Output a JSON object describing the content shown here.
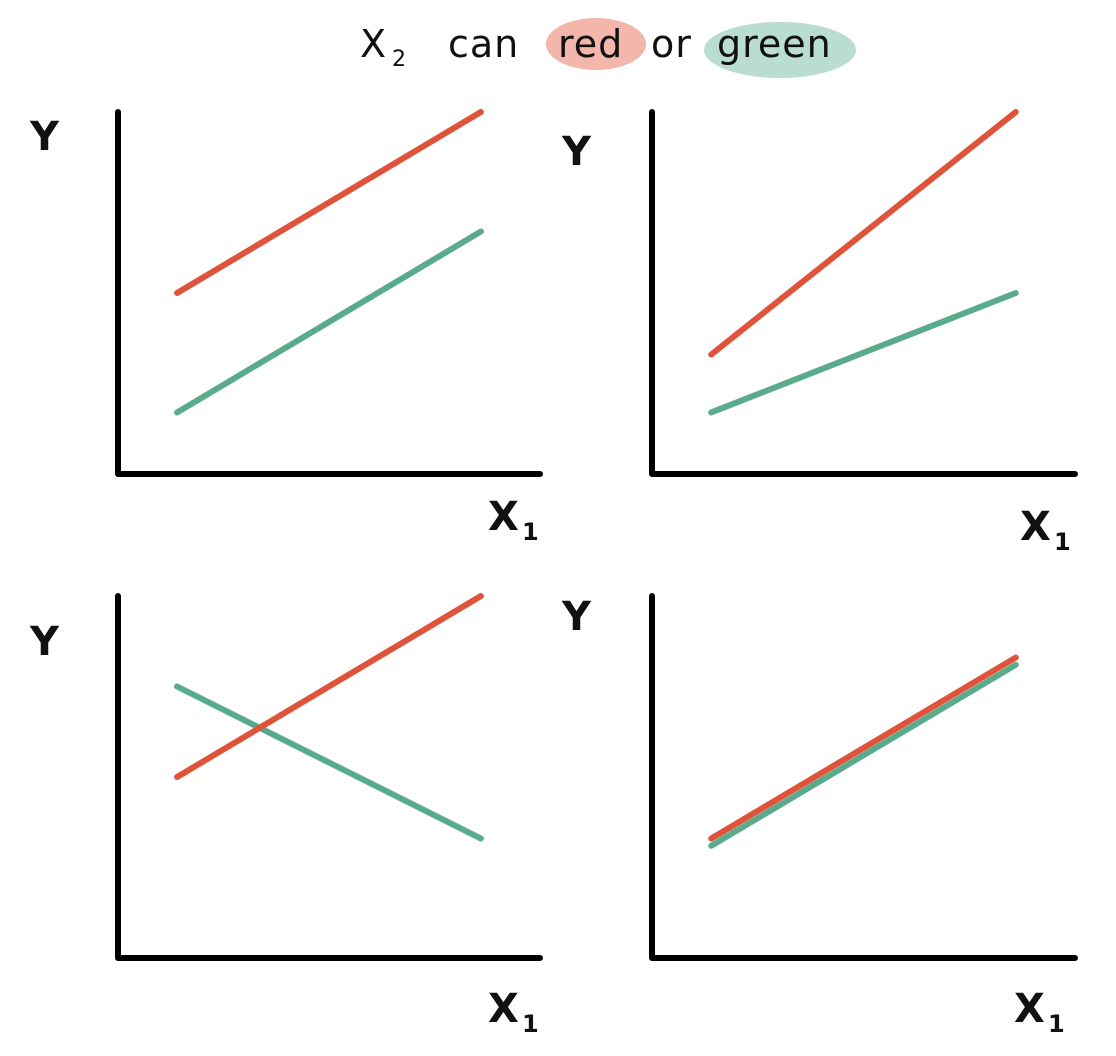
{
  "title": {
    "var_main": "X",
    "var_sub": "2",
    "text_can": "can",
    "red_word": "red",
    "or_word": "or",
    "green_word": "green"
  },
  "colors": {
    "red": "#e0533b",
    "green": "#5aab8c",
    "red_highlight": "#f2b6aa",
    "green_highlight": "#b9ddd1",
    "axis": "#000000"
  },
  "chart_data": [
    {
      "type": "line",
      "ylabel": "Y",
      "xlabel_main": "X",
      "xlabel_sub": "1",
      "ylim": [
        0,
        10
      ],
      "xlim": [
        0,
        10
      ],
      "series": [
        {
          "name": "red",
          "color": "red",
          "x": [
            1.4,
            8.6
          ],
          "y": [
            5,
            10
          ]
        },
        {
          "name": "green",
          "color": "green",
          "x": [
            1.4,
            8.6
          ],
          "y": [
            1.7,
            6.7
          ]
        }
      ]
    },
    {
      "type": "line",
      "ylabel": "Y",
      "xlabel_main": "X",
      "xlabel_sub": "1",
      "ylim": [
        0,
        10
      ],
      "xlim": [
        0,
        10
      ],
      "series": [
        {
          "name": "red",
          "color": "red",
          "x": [
            1.4,
            8.6
          ],
          "y": [
            3.3,
            10
          ]
        },
        {
          "name": "green",
          "color": "green",
          "x": [
            1.4,
            8.6
          ],
          "y": [
            1.7,
            5
          ]
        }
      ]
    },
    {
      "type": "line",
      "ylabel": "Y",
      "xlabel_main": "X",
      "xlabel_sub": "1",
      "ylim": [
        0,
        10
      ],
      "xlim": [
        0,
        10
      ],
      "series": [
        {
          "name": "red",
          "color": "red",
          "x": [
            1.4,
            8.6
          ],
          "y": [
            5,
            10
          ]
        },
        {
          "name": "green",
          "color": "green",
          "x": [
            1.4,
            8.6
          ],
          "y": [
            7.5,
            3.3
          ]
        }
      ]
    },
    {
      "type": "line",
      "ylabel": "Y",
      "xlabel_main": "X",
      "xlabel_sub": "1",
      "ylim": [
        0,
        10
      ],
      "xlim": [
        0,
        10
      ],
      "series": [
        {
          "name": "red",
          "color": "red",
          "x": [
            1.4,
            8.6
          ],
          "y": [
            3.3,
            8.3
          ]
        },
        {
          "name": "green",
          "color": "green",
          "x": [
            1.4,
            8.6
          ],
          "y": [
            3.1,
            8.1
          ]
        }
      ]
    }
  ]
}
